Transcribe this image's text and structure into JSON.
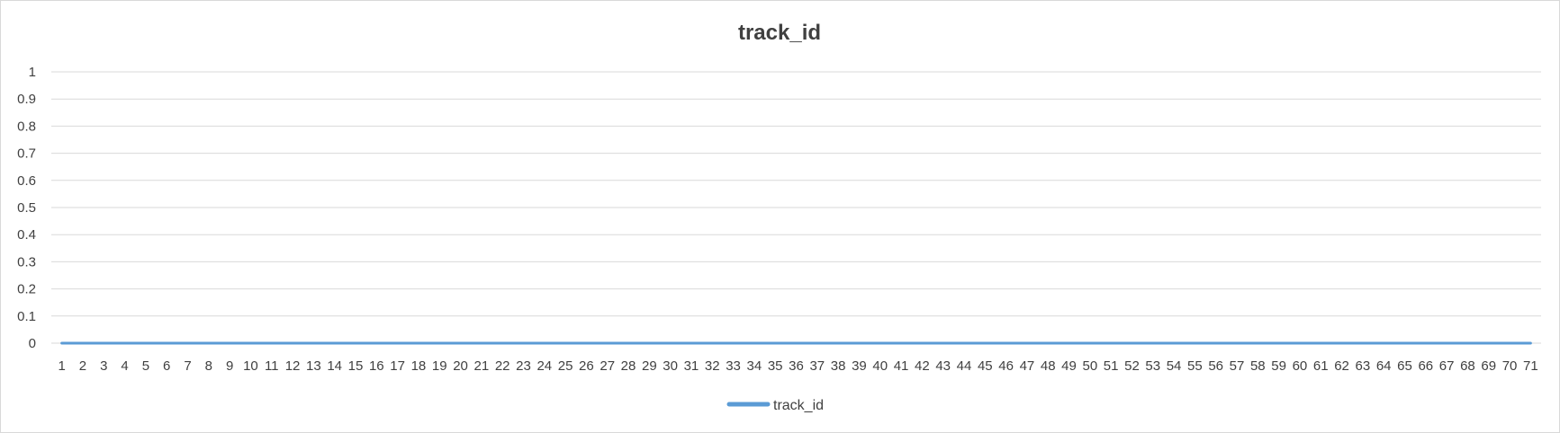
{
  "chart_data": {
    "type": "line",
    "title": "track_id",
    "xlabel": "",
    "ylabel": "",
    "categories": [
      "1",
      "2",
      "3",
      "4",
      "5",
      "6",
      "7",
      "8",
      "9",
      "10",
      "11",
      "12",
      "13",
      "14",
      "15",
      "16",
      "17",
      "18",
      "19",
      "20",
      "21",
      "22",
      "23",
      "24",
      "25",
      "26",
      "27",
      "28",
      "29",
      "30",
      "31",
      "32",
      "33",
      "34",
      "35",
      "36",
      "37",
      "38",
      "39",
      "40",
      "41",
      "42",
      "43",
      "44",
      "45",
      "46",
      "47",
      "48",
      "49",
      "50",
      "51",
      "52",
      "53",
      "54",
      "55",
      "56",
      "57",
      "58",
      "59",
      "60",
      "61",
      "62",
      "63",
      "64",
      "65",
      "66",
      "67",
      "68",
      "69",
      "70",
      "71"
    ],
    "y_ticks": [
      "0",
      "0.1",
      "0.2",
      "0.3",
      "0.4",
      "0.5",
      "0.6",
      "0.7",
      "0.8",
      "0.9",
      "1"
    ],
    "ylim": [
      0,
      1
    ],
    "grid": true,
    "legend_position": "bottom",
    "series": [
      {
        "name": "track_id",
        "color": "#5b9bd5",
        "values": [
          0,
          0,
          0,
          0,
          0,
          0,
          0,
          0,
          0,
          0,
          0,
          0,
          0,
          0,
          0,
          0,
          0,
          0,
          0,
          0,
          0,
          0,
          0,
          0,
          0,
          0,
          0,
          0,
          0,
          0,
          0,
          0,
          0,
          0,
          0,
          0,
          0,
          0,
          0,
          0,
          0,
          0,
          0,
          0,
          0,
          0,
          0,
          0,
          0,
          0,
          0,
          0,
          0,
          0,
          0,
          0,
          0,
          0,
          0,
          0,
          0,
          0,
          0,
          0,
          0,
          0,
          0,
          0,
          0,
          0,
          0
        ]
      }
    ]
  }
}
